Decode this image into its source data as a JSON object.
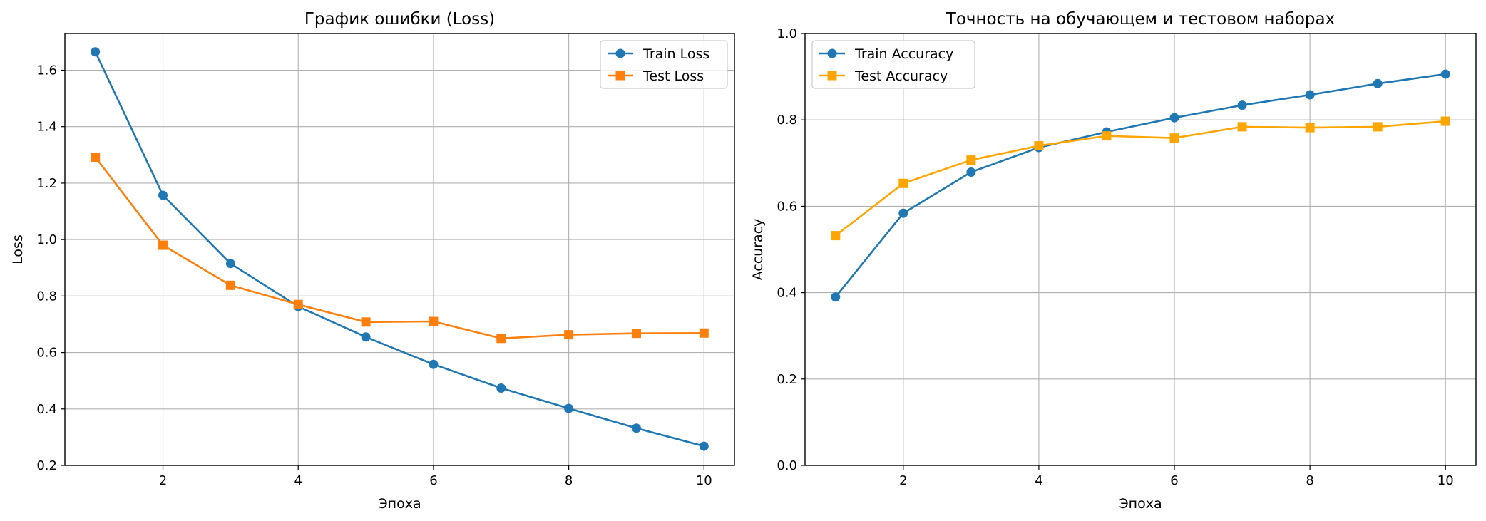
{
  "chart_data": [
    {
      "type": "line",
      "title": "График ошибки (Loss)",
      "xlabel": "Эпоха",
      "ylabel": "Loss",
      "x": [
        1,
        2,
        3,
        4,
        5,
        6,
        7,
        8,
        9,
        10
      ],
      "xlim": [
        0.55,
        10.45
      ],
      "ylim": [
        0.2,
        1.73
      ],
      "xticks": [
        2,
        4,
        6,
        8,
        10
      ],
      "yticks": [
        0.2,
        0.4,
        0.6,
        0.8,
        1.0,
        1.2,
        1.4,
        1.6
      ],
      "grid": true,
      "legend_position": "top-right",
      "series": [
        {
          "name": "Train Loss",
          "color": "#1f77b4",
          "marker": "circle",
          "values": [
            1.665,
            1.157,
            0.915,
            0.763,
            0.655,
            0.558,
            0.474,
            0.402,
            0.332,
            0.268
          ]
        },
        {
          "name": "Test Loss",
          "color": "#ff7f0e",
          "marker": "square",
          "values": [
            1.292,
            0.98,
            0.838,
            0.77,
            0.708,
            0.71,
            0.65,
            0.663,
            0.668,
            0.669
          ]
        }
      ]
    },
    {
      "type": "line",
      "title": "Точность на обучающем и тестовом наборах",
      "xlabel": "Эпоха",
      "ylabel": "Accuracy",
      "x": [
        1,
        2,
        3,
        4,
        5,
        6,
        7,
        8,
        9,
        10
      ],
      "xlim": [
        0.55,
        10.45
      ],
      "ylim": [
        0.0,
        1.0
      ],
      "xticks": [
        2,
        4,
        6,
        8,
        10
      ],
      "yticks": [
        0.0,
        0.2,
        0.4,
        0.6,
        0.8,
        1.0
      ],
      "grid": true,
      "legend_position": "top-left",
      "series": [
        {
          "name": "Train Accuracy",
          "color": "#1f77b4",
          "marker": "circle",
          "values": [
            0.39,
            0.584,
            0.679,
            0.736,
            0.772,
            0.805,
            0.834,
            0.858,
            0.884,
            0.906
          ]
        },
        {
          "name": "Test Accuracy",
          "color": "#ffa500",
          "marker": "square",
          "values": [
            0.532,
            0.653,
            0.707,
            0.74,
            0.763,
            0.758,
            0.784,
            0.782,
            0.784,
            0.797
          ]
        }
      ]
    }
  ]
}
